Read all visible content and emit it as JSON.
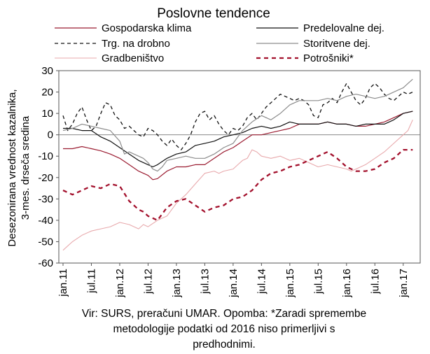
{
  "chart_data": {
    "type": "line",
    "title": "Poslovne tendence",
    "ylabel_line1": "Desezonirana vrednost kazalnika,",
    "ylabel_line2": "3-mes. drseča sredina",
    "ylim": [
      -60,
      30
    ],
    "yticks": [
      30,
      20,
      10,
      0,
      -10,
      -20,
      -30,
      -40,
      -50,
      -60
    ],
    "x_tick_labels": [
      "jan.11",
      "jul.11",
      "jan.12",
      "jul.12",
      "jan.13",
      "jul.13",
      "jan.14",
      "jul.14",
      "jan.15",
      "jul.15",
      "jan.16",
      "jul.16",
      "jan.17"
    ],
    "x_tick_months": [
      0,
      6,
      12,
      18,
      24,
      30,
      36,
      42,
      48,
      54,
      60,
      66,
      72
    ],
    "x_range_months": [
      0,
      75
    ],
    "grid": false,
    "legend_placement": "top",
    "series": [
      {
        "name": "Gospodarska klima",
        "color": "#9b1c31",
        "style": "solid",
        "width": 1.2,
        "points": [
          [
            0,
            -6.5
          ],
          [
            2,
            -6.5
          ],
          [
            4,
            -5.5
          ],
          [
            6,
            -6.5
          ],
          [
            8,
            -7.5
          ],
          [
            10,
            -9
          ],
          [
            12,
            -11
          ],
          [
            14,
            -14
          ],
          [
            16,
            -17
          ],
          [
            18,
            -19
          ],
          [
            19,
            -21
          ],
          [
            20,
            -20.5
          ],
          [
            22,
            -17
          ],
          [
            24,
            -15
          ],
          [
            26,
            -15
          ],
          [
            28,
            -14
          ],
          [
            30,
            -14
          ],
          [
            32,
            -11
          ],
          [
            34,
            -8
          ],
          [
            36,
            -6
          ],
          [
            38,
            -3
          ],
          [
            40,
            0
          ],
          [
            42,
            0
          ],
          [
            44,
            1
          ],
          [
            46,
            2
          ],
          [
            48,
            3
          ],
          [
            50,
            5
          ],
          [
            52,
            5
          ],
          [
            54,
            5
          ],
          [
            56,
            6
          ],
          [
            58,
            5
          ],
          [
            60,
            5
          ],
          [
            62,
            4
          ],
          [
            64,
            4
          ],
          [
            66,
            5
          ],
          [
            68,
            6
          ],
          [
            70,
            8
          ],
          [
            72,
            10
          ],
          [
            74,
            11
          ]
        ]
      },
      {
        "name": "Predelovalne dej.",
        "color": "#111111",
        "style": "solid",
        "width": 1.2,
        "points": [
          [
            0,
            3
          ],
          [
            2,
            3
          ],
          [
            4,
            2
          ],
          [
            6,
            2
          ],
          [
            8,
            -1
          ],
          [
            10,
            -3
          ],
          [
            12,
            -6
          ],
          [
            14,
            -9
          ],
          [
            16,
            -12
          ],
          [
            18,
            -14
          ],
          [
            19,
            -15
          ],
          [
            20,
            -14
          ],
          [
            22,
            -11
          ],
          [
            24,
            -9
          ],
          [
            26,
            -8
          ],
          [
            28,
            -5
          ],
          [
            30,
            -4
          ],
          [
            32,
            -3
          ],
          [
            34,
            -1
          ],
          [
            36,
            0
          ],
          [
            38,
            1
          ],
          [
            40,
            3
          ],
          [
            42,
            4
          ],
          [
            44,
            3
          ],
          [
            46,
            4
          ],
          [
            48,
            6
          ],
          [
            50,
            5
          ],
          [
            52,
            5
          ],
          [
            54,
            5
          ],
          [
            56,
            6
          ],
          [
            58,
            5
          ],
          [
            60,
            5
          ],
          [
            62,
            4
          ],
          [
            64,
            5
          ],
          [
            66,
            5
          ],
          [
            68,
            5
          ],
          [
            70,
            7
          ],
          [
            72,
            10
          ],
          [
            74,
            11
          ]
        ]
      },
      {
        "name": "Trg. na drobno",
        "color": "#111111",
        "style": "dashed",
        "width": 1.3,
        "points": [
          [
            0,
            9
          ],
          [
            1,
            2
          ],
          [
            2,
            5
          ],
          [
            3,
            10
          ],
          [
            4,
            13
          ],
          [
            5,
            7
          ],
          [
            6,
            2
          ],
          [
            7,
            4
          ],
          [
            8,
            10
          ],
          [
            9,
            15
          ],
          [
            10,
            14
          ],
          [
            11,
            9
          ],
          [
            12,
            7
          ],
          [
            13,
            3
          ],
          [
            14,
            4
          ],
          [
            15,
            2
          ],
          [
            16,
            0
          ],
          [
            17,
            -1
          ],
          [
            18,
            3
          ],
          [
            19,
            2
          ],
          [
            20,
            0
          ],
          [
            21,
            -3
          ],
          [
            22,
            -5
          ],
          [
            23,
            -2
          ],
          [
            24,
            -5
          ],
          [
            25,
            -7
          ],
          [
            26,
            -4
          ],
          [
            27,
            0
          ],
          [
            28,
            6
          ],
          [
            29,
            10
          ],
          [
            30,
            11
          ],
          [
            31,
            7
          ],
          [
            32,
            9
          ],
          [
            33,
            5
          ],
          [
            34,
            2
          ],
          [
            35,
            0
          ],
          [
            36,
            3
          ],
          [
            37,
            2
          ],
          [
            38,
            4
          ],
          [
            39,
            8
          ],
          [
            40,
            10
          ],
          [
            41,
            7
          ],
          [
            42,
            10
          ],
          [
            43,
            13
          ],
          [
            44,
            15
          ],
          [
            45,
            17
          ],
          [
            46,
            19
          ],
          [
            47,
            18
          ],
          [
            48,
            17
          ],
          [
            49,
            16
          ],
          [
            50,
            17
          ],
          [
            51,
            16
          ],
          [
            52,
            14
          ],
          [
            53,
            9
          ],
          [
            54,
            8
          ],
          [
            55,
            14
          ],
          [
            56,
            15
          ],
          [
            57,
            17
          ],
          [
            58,
            15
          ],
          [
            59,
            20
          ],
          [
            60,
            24
          ],
          [
            61,
            20
          ],
          [
            62,
            16
          ],
          [
            63,
            14
          ],
          [
            64,
            17
          ],
          [
            65,
            22
          ],
          [
            66,
            24
          ],
          [
            67,
            22
          ],
          [
            68,
            19
          ],
          [
            69,
            17
          ],
          [
            70,
            16
          ],
          [
            71,
            18
          ],
          [
            72,
            20
          ],
          [
            73,
            19
          ],
          [
            74,
            20
          ]
        ]
      },
      {
        "name": "Storitvene dej.",
        "color": "#8c8c8c",
        "style": "solid",
        "width": 1.2,
        "points": [
          [
            0,
            2
          ],
          [
            2,
            3
          ],
          [
            4,
            5
          ],
          [
            6,
            4
          ],
          [
            8,
            3
          ],
          [
            10,
            2
          ],
          [
            12,
            -3
          ],
          [
            13,
            -9
          ],
          [
            14,
            -8
          ],
          [
            15,
            -9
          ],
          [
            16,
            -10
          ],
          [
            17,
            -11
          ],
          [
            18,
            -13
          ],
          [
            19,
            -16
          ],
          [
            20,
            -17
          ],
          [
            21,
            -15
          ],
          [
            22,
            -12
          ],
          [
            24,
            -11
          ],
          [
            26,
            -10
          ],
          [
            28,
            -11
          ],
          [
            30,
            -11
          ],
          [
            32,
            -9
          ],
          [
            34,
            -6
          ],
          [
            36,
            -4
          ],
          [
            37,
            -1
          ],
          [
            38,
            2
          ],
          [
            40,
            6
          ],
          [
            42,
            9
          ],
          [
            44,
            7
          ],
          [
            46,
            10
          ],
          [
            48,
            14
          ],
          [
            50,
            16
          ],
          [
            52,
            16
          ],
          [
            54,
            16
          ],
          [
            56,
            17
          ],
          [
            58,
            16
          ],
          [
            60,
            18
          ],
          [
            62,
            19
          ],
          [
            64,
            18
          ],
          [
            66,
            17
          ],
          [
            68,
            18
          ],
          [
            70,
            20
          ],
          [
            72,
            22
          ],
          [
            73,
            24
          ],
          [
            74,
            26
          ]
        ]
      },
      {
        "name": "Gradbeništvo",
        "color": "#e8a9ac",
        "style": "solid",
        "width": 1.1,
        "points": [
          [
            0,
            -54
          ],
          [
            2,
            -50
          ],
          [
            4,
            -47
          ],
          [
            6,
            -45
          ],
          [
            8,
            -44
          ],
          [
            10,
            -43
          ],
          [
            12,
            -41
          ],
          [
            14,
            -42
          ],
          [
            16,
            -44
          ],
          [
            17,
            -42
          ],
          [
            18,
            -43
          ],
          [
            20,
            -40
          ],
          [
            22,
            -38
          ],
          [
            24,
            -32
          ],
          [
            26,
            -28
          ],
          [
            28,
            -23
          ],
          [
            30,
            -18
          ],
          [
            32,
            -17
          ],
          [
            33,
            -18
          ],
          [
            34,
            -17
          ],
          [
            36,
            -16
          ],
          [
            37,
            -14
          ],
          [
            38,
            -12
          ],
          [
            39,
            -11
          ],
          [
            40,
            -7
          ],
          [
            41,
            -8
          ],
          [
            42,
            -10
          ],
          [
            44,
            -11
          ],
          [
            46,
            -10
          ],
          [
            48,
            -12
          ],
          [
            50,
            -11
          ],
          [
            52,
            -13
          ],
          [
            54,
            -15
          ],
          [
            56,
            -14
          ],
          [
            58,
            -15
          ],
          [
            60,
            -16
          ],
          [
            61,
            -17
          ],
          [
            62,
            -16
          ],
          [
            64,
            -14
          ],
          [
            66,
            -11
          ],
          [
            68,
            -8
          ],
          [
            70,
            -4
          ],
          [
            72,
            0
          ],
          [
            73,
            2
          ],
          [
            74,
            7
          ]
        ]
      },
      {
        "name": "Potrošniki*",
        "color": "#a3102c",
        "style": "dashed",
        "width": 2.3,
        "points": [
          [
            0,
            -26
          ],
          [
            2,
            -28
          ],
          [
            4,
            -26
          ],
          [
            6,
            -24
          ],
          [
            8,
            -25
          ],
          [
            10,
            -23
          ],
          [
            12,
            -24
          ],
          [
            14,
            -31
          ],
          [
            16,
            -35
          ],
          [
            17,
            -36
          ],
          [
            18,
            -38
          ],
          [
            19,
            -39
          ],
          [
            20,
            -40
          ],
          [
            22,
            -34
          ],
          [
            24,
            -31
          ],
          [
            26,
            -30
          ],
          [
            28,
            -33
          ],
          [
            30,
            -36
          ],
          [
            32,
            -34
          ],
          [
            34,
            -33
          ],
          [
            36,
            -30
          ],
          [
            38,
            -29
          ],
          [
            40,
            -26
          ],
          [
            42,
            -21
          ],
          [
            44,
            -18
          ],
          [
            46,
            -17
          ],
          [
            48,
            -15
          ],
          [
            50,
            -14
          ],
          [
            52,
            -12
          ],
          [
            54,
            -10
          ],
          [
            56,
            -8
          ],
          [
            58,
            -11
          ],
          [
            60,
            -15
          ],
          [
            62,
            -17
          ],
          [
            64,
            -17
          ],
          [
            66,
            -16
          ],
          [
            68,
            -13
          ],
          [
            70,
            -11
          ],
          [
            72,
            -7
          ],
          [
            74,
            -7
          ]
        ]
      }
    ],
    "legend": [
      {
        "name": "Gospodarska klima",
        "color": "#9b1c31",
        "style": "solid"
      },
      {
        "name": "Predelovalne dej.",
        "color": "#111111",
        "style": "solid"
      },
      {
        "name": "Trg. na drobno",
        "color": "#111111",
        "style": "dashed"
      },
      {
        "name": "Storitvene dej.",
        "color": "#8c8c8c",
        "style": "solid"
      },
      {
        "name": "Gradbeništvo",
        "color": "#e8a9ac",
        "style": "solid"
      },
      {
        "name": "Potrošniki*",
        "color": "#a3102c",
        "style": "dashed"
      }
    ]
  },
  "source_note": {
    "line1": "Vir: SURS, preračuni UMAR. Opomba: *Zaradi spremembe",
    "line2": "metodologije podatki od 2016 niso primerljivi s",
    "line3": "predhodnimi."
  }
}
